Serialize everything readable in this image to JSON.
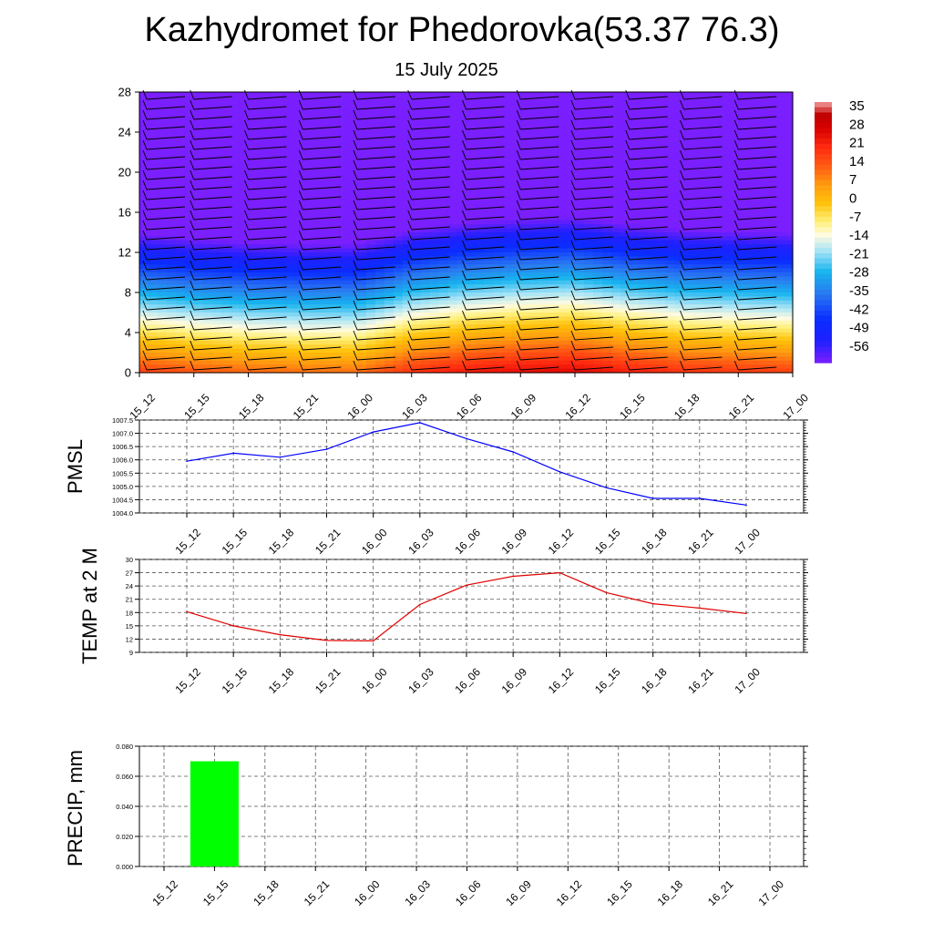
{
  "title": "Kazhydromet for Phedorovka(53.37 76.3)",
  "subtitle": "15 July 2025",
  "time_labels": [
    "15_12",
    "15_15",
    "15_18",
    "15_21",
    "16_00",
    "16_03",
    "16_06",
    "16_09",
    "16_12",
    "16_15",
    "16_18",
    "16_21",
    "17_00"
  ],
  "chart_data": [
    {
      "type": "heatmap",
      "name": "temperature-height-section",
      "x": [
        "15_12",
        "15_15",
        "15_18",
        "15_21",
        "16_00",
        "16_03",
        "16_06",
        "16_09",
        "16_12",
        "16_15",
        "16_18",
        "16_21",
        "17_00"
      ],
      "y_ticks": [
        0,
        4,
        8,
        12,
        16,
        20,
        24,
        28
      ],
      "ylim": [
        0,
        28
      ],
      "colorbar_labels": [
        "35",
        "28",
        "21",
        "14",
        "7",
        "0",
        "-7",
        "-14",
        "-21",
        "-28",
        "-35",
        "-42",
        "-49",
        "-56"
      ],
      "colorbar_range": [
        -60,
        38
      ],
      "color_stops": [
        {
          "v": -60,
          "c": "#7a1fff"
        },
        {
          "v": -52,
          "c": "#2020ff"
        },
        {
          "v": -44,
          "c": "#0a2cff"
        },
        {
          "v": -34,
          "c": "#2a7af0"
        },
        {
          "v": -26,
          "c": "#17b4ef"
        },
        {
          "v": -18,
          "c": "#a8e4f6"
        },
        {
          "v": -12,
          "c": "#fffbe0"
        },
        {
          "v": -7,
          "c": "#fff07a"
        },
        {
          "v": 0,
          "c": "#ffc20a"
        },
        {
          "v": 7,
          "c": "#ff9a10"
        },
        {
          "v": 14,
          "c": "#ff5a14"
        },
        {
          "v": 21,
          "c": "#ff2a10"
        },
        {
          "v": 28,
          "c": "#d80000"
        },
        {
          "v": 33,
          "c": "#c00000"
        },
        {
          "v": 38,
          "c": "#f4a0a0"
        }
      ],
      "surface_values": [
        18,
        15,
        13,
        12,
        12,
        20,
        24,
        26,
        27,
        23,
        20,
        19,
        18
      ],
      "lapse_rate_per_km": 5.6,
      "wind_barbs": true,
      "grid": false
    },
    {
      "type": "line",
      "name": "PMSL",
      "ylabel": "PMSL",
      "x": [
        "15_12",
        "15_15",
        "15_18",
        "15_21",
        "16_00",
        "16_03",
        "16_06",
        "16_09",
        "16_12",
        "16_15",
        "16_18",
        "16_21",
        "17_00"
      ],
      "values": [
        1005.95,
        1006.25,
        1006.1,
        1006.4,
        1007.05,
        1007.4,
        1006.8,
        1006.3,
        1005.55,
        1004.95,
        1004.55,
        1004.55,
        1004.3
      ],
      "ylim": [
        1004.0,
        1007.5
      ],
      "y_ticks": [
        "1004.0",
        "1004.5",
        "1005.0",
        "1005.5",
        "1006.0",
        "1006.5",
        "1007.0",
        "1007.5"
      ],
      "color": "#0000ff",
      "grid": true
    },
    {
      "type": "line",
      "name": "TEMP at 2 M",
      "ylabel": "TEMP at 2 M",
      "x": [
        "15_12",
        "15_15",
        "15_18",
        "15_21",
        "16_00",
        "16_03",
        "16_06",
        "16_09",
        "16_12",
        "16_15",
        "16_18",
        "16_21",
        "17_00"
      ],
      "values": [
        18.2,
        15.0,
        13.0,
        11.7,
        11.6,
        19.8,
        24.2,
        26.2,
        27.0,
        22.5,
        20.0,
        19.0,
        17.8
      ],
      "ylim": [
        9,
        30
      ],
      "y_ticks": [
        "9",
        "12",
        "15",
        "18",
        "21",
        "24",
        "27",
        "30"
      ],
      "color": "#e00000",
      "grid": true
    },
    {
      "type": "bar",
      "name": "PRECIP, mm",
      "ylabel": "PRECIP, mm",
      "x": [
        "15_12",
        "15_15",
        "15_18",
        "15_21",
        "16_00",
        "16_03",
        "16_06",
        "16_09",
        "16_12",
        "16_15",
        "16_18",
        "16_21",
        "17_00"
      ],
      "values": [
        0,
        0.07,
        0,
        0,
        0,
        0,
        0,
        0,
        0,
        0,
        0,
        0,
        0
      ],
      "ylim": [
        0,
        0.08
      ],
      "y_ticks": [
        "0.000",
        "0.020",
        "0.040",
        "0.060",
        "0.080"
      ],
      "color": "#00ff00",
      "grid": true
    }
  ]
}
